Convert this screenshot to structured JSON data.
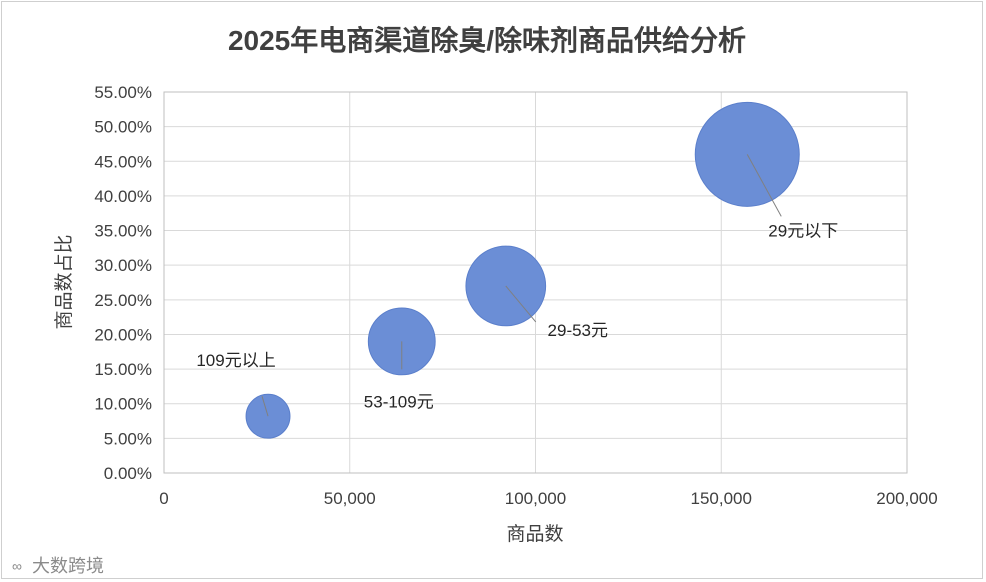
{
  "chart_data": {
    "type": "scatter",
    "variant": "bubble",
    "title": "2025年电商渠道除臭/除味剂商品供给分析",
    "xlabel": "商品数",
    "ylabel": "商品数占比",
    "xlim": [
      0,
      200000
    ],
    "ylim": [
      0,
      55
    ],
    "x_ticks": [
      "0",
      "50,000",
      "100,000",
      "150,000",
      "200,000"
    ],
    "y_ticks": [
      "0.00%",
      "5.00%",
      "10.00%",
      "15.00%",
      "20.00%",
      "25.00%",
      "30.00%",
      "35.00%",
      "40.00%",
      "45.00%",
      "50.00%",
      "55.00%"
    ],
    "grid": true,
    "bubble_color": "#6b8ed6",
    "points": [
      {
        "label": "109元以上",
        "x": 28000,
        "y": 8.2
      },
      {
        "label": "53-109元",
        "x": 64000,
        "y": 19.0
      },
      {
        "label": "29-53元",
        "x": 92000,
        "y": 27.0
      },
      {
        "label": "29元以下",
        "x": 157000,
        "y": 46.0
      }
    ]
  },
  "watermark": {
    "text": "大数跨境"
  }
}
